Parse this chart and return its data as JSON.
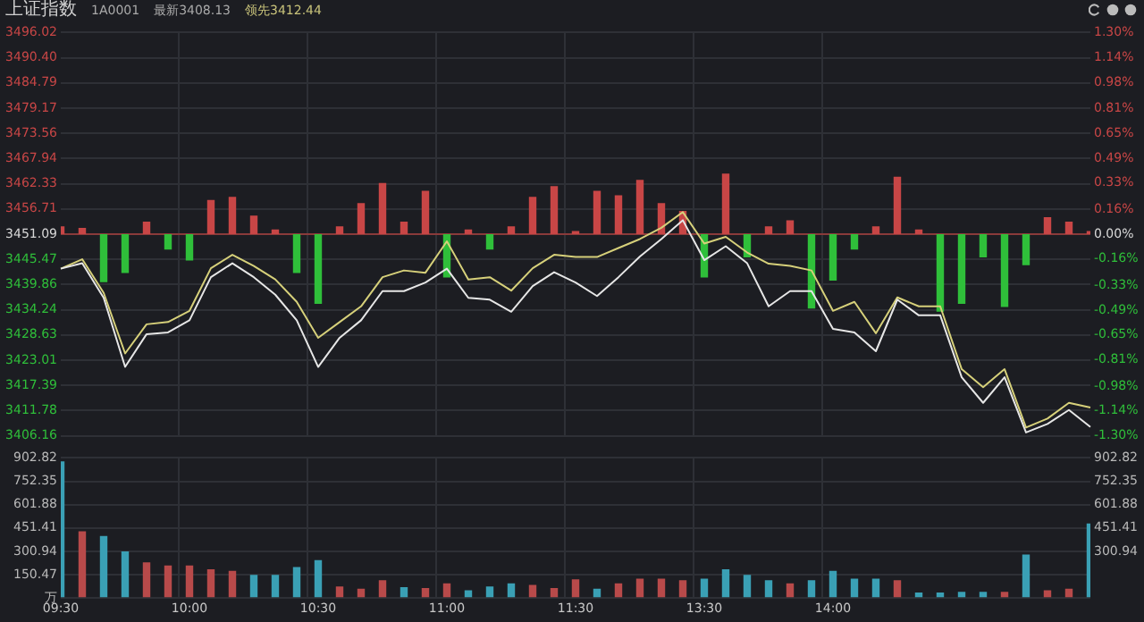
{
  "chart_data": [
    {
      "type": "line",
      "title": "上证指数",
      "annotations": [
        "1A0001",
        "最新3408.13",
        "领先3412.44"
      ],
      "categories": [
        null,
        null,
        null,
        null,
        null,
        null,
        null,
        null,
        null,
        null,
        null,
        null,
        null,
        null,
        null,
        null,
        null,
        null,
        null,
        null,
        null,
        null,
        null,
        null,
        null,
        null,
        null,
        null,
        null,
        null,
        null,
        null,
        null,
        null,
        null,
        null,
        null,
        null,
        null,
        null,
        null,
        null,
        null,
        null,
        null,
        null,
        null,
        null,
        null
      ],
      "series": [
        {
          "type": "line",
          "color": "#e6e6e6",
          "values": [
            3443.4,
            3444.6,
            3436.9,
            3421.5,
            3428.8,
            3429.2,
            3431.9,
            3441.5,
            3444.6,
            3441.5,
            3437.6,
            3431.9,
            3421.5,
            3428.0,
            3431.9,
            3438.4,
            3438.4,
            3440.3,
            3443.4,
            3436.9,
            3436.5,
            3433.8,
            3439.5,
            3442.6,
            3440.3,
            3437.3,
            3441.5,
            3446.1,
            3450.0,
            3454.2,
            3445.3,
            3448.4,
            3444.6,
            3435.0,
            3438.4,
            3438.4,
            3430.0,
            3429.2,
            3425.0,
            3436.5,
            3433.0,
            3433.0,
            3419.2,
            3413.5,
            3419.2,
            3406.9,
            3408.8,
            3411.9,
            3408.13
          ]
        },
        {
          "type": "line",
          "color": "#d6d07a",
          "values": [
            3443.4,
            3445.5,
            3438,
            3424.5,
            3431,
            3431.5,
            3434,
            3443.5,
            3446.5,
            3444,
            3441,
            3436,
            3428,
            3431.5,
            3435,
            3441.5,
            3443,
            3442.5,
            3449.5,
            3441,
            3441.5,
            3438.5,
            3443.5,
            3446.5,
            3446,
            3446,
            3448,
            3450,
            3452.5,
            3456,
            3449,
            3450.5,
            3447,
            3444.5,
            3444,
            3443,
            3434,
            3436,
            3429,
            3437,
            3435,
            3435,
            3421,
            3417,
            3421,
            3408,
            3410,
            3413.5,
            3412.44
          ]
        },
        {
          "type": "bar",
          "axis": "y2",
          "values": [
            0.05,
            0.04,
            -0.31,
            -0.25,
            0.08,
            -0.1,
            -0.17,
            0.22,
            0.24,
            0.12,
            0.03,
            -0.25,
            -0.45,
            0.05,
            0.2,
            0.33,
            0.08,
            0.28,
            -0.28,
            0.03,
            -0.1,
            0.05,
            0.24,
            0.31,
            0.02,
            0.28,
            0.25,
            0.35,
            0.2,
            0.15,
            -0.28,
            0.39,
            -0.15,
            0.05,
            0.09,
            -0.48,
            -0.3,
            -0.1,
            0.05,
            0.37,
            0.03,
            -0.5,
            -0.45,
            -0.15,
            -0.47,
            -0.2,
            0.11,
            0.08,
            0.02
          ],
          "colors": [
            "#c84646",
            "#c84646",
            "#2fbf3a",
            "#2fbf3a",
            "#c84646",
            "#2fbf3a",
            "#2fbf3a",
            "#c84646",
            "#c84646",
            "#c84646",
            "#c84646",
            "#2fbf3a",
            "#2fbf3a",
            "#c84646",
            "#c84646",
            "#c84646",
            "#c84646",
            "#c84646",
            "#2fbf3a",
            "#c84646",
            "#2fbf3a",
            "#c84646",
            "#c84646",
            "#c84646",
            "#c84646",
            "#c84646",
            "#c84646",
            "#c84646",
            "#c84646",
            "#c84646",
            "#2fbf3a",
            "#c84646",
            "#2fbf3a",
            "#c84646",
            "#c84646",
            "#2fbf3a",
            "#2fbf3a",
            "#2fbf3a",
            "#c84646",
            "#c84646",
            "#c84646",
            "#2fbf3a",
            "#2fbf3a",
            "#2fbf3a",
            "#2fbf3a",
            "#2fbf3a",
            "#c84646",
            "#c84646",
            "#c84646"
          ]
        }
      ],
      "ylim": [
        3406.16,
        3496.02
      ],
      "yticks": [
        3406.16,
        3411.78,
        3417.39,
        3423.01,
        3428.63,
        3434.24,
        3439.86,
        3445.47,
        3451.09,
        3456.71,
        3462.33,
        3467.94,
        3473.56,
        3479.17,
        3484.79,
        {
          "value": 3490.4,
          "label": "3490.40"
        },
        3496.02
      ],
      "y2lim": [
        -1.3,
        1.3
      ],
      "y2ticks": [
        {
          "value": -1.3,
          "label": "-1.30%"
        },
        {
          "value": -1.14,
          "label": "-1.14%"
        },
        {
          "value": -0.98,
          "label": "-0.98%"
        },
        {
          "value": -0.81,
          "label": "-0.81%"
        },
        {
          "value": -0.65,
          "label": "-0.65%"
        },
        {
          "value": -0.49,
          "label": "-0.49%"
        },
        {
          "value": -0.33,
          "label": "-0.33%"
        },
        {
          "value": -0.16,
          "label": "-0.16%"
        },
        {
          "value": 0,
          "label": "0.00%"
        },
        {
          "value": 0.16,
          "label": "0.16%"
        },
        {
          "value": 0.33,
          "label": "0.33%"
        },
        {
          "value": 0.49,
          "label": "0.49%"
        },
        {
          "value": 0.65,
          "label": "0.65%"
        },
        {
          "value": 0.81,
          "label": "0.81%"
        },
        {
          "value": 0.98,
          "label": "0.98%"
        },
        {
          "value": 1.14,
          "label": "1.14%"
        },
        {
          "value": 1.3,
          "label": "1.30%"
        }
      ],
      "ref_lines": [
        {
          "axis": "y",
          "value": 3451.09,
          "color": "#8a3a3a"
        }
      ],
      "grid": true,
      "legend": false,
      "tick_labels": "y",
      "marker": "none"
    },
    {
      "type": "bar",
      "categories": [
        "09:30",
        null,
        null,
        null,
        null,
        null,
        "10:00",
        null,
        null,
        null,
        null,
        null,
        "10:30",
        null,
        null,
        null,
        null,
        null,
        "11:00",
        null,
        null,
        null,
        null,
        null,
        "11:30",
        null,
        null,
        null,
        null,
        null,
        "13:30",
        null,
        null,
        null,
        null,
        null,
        "14:00",
        null,
        null,
        null,
        null,
        null,
        null,
        null,
        null,
        null,
        null,
        null,
        null
      ],
      "values": [
        880,
        430,
        400,
        300,
        230,
        210,
        210,
        185,
        175,
        150,
        150,
        200,
        245,
        75,
        60,
        115,
        70,
        65,
        95,
        50,
        75,
        95,
        85,
        65,
        120,
        60,
        95,
        125,
        125,
        115,
        125,
        185,
        150,
        115,
        95,
        115,
        175,
        125,
        125,
        115,
        35,
        35,
        40,
        40,
        40,
        280,
        50,
        60,
        480
      ],
      "colors": [
        "#3aa0b5",
        "#b84a4a",
        "#3aa0b5",
        "#3aa0b5",
        "#b84a4a",
        "#b84a4a",
        "#b84a4a",
        "#b84a4a",
        "#b84a4a",
        "#3aa0b5",
        "#3aa0b5",
        "#3aa0b5",
        "#3aa0b5",
        "#b84a4a",
        "#b84a4a",
        "#b84a4a",
        "#3aa0b5",
        "#b84a4a",
        "#b84a4a",
        "#3aa0b5",
        "#3aa0b5",
        "#3aa0b5",
        "#b84a4a",
        "#b84a4a",
        "#b84a4a",
        "#3aa0b5",
        "#b84a4a",
        "#b84a4a",
        "#b84a4a",
        "#b84a4a",
        "#3aa0b5",
        "#3aa0b5",
        "#3aa0b5",
        "#3aa0b5",
        "#b84a4a",
        "#3aa0b5",
        "#3aa0b5",
        "#3aa0b5",
        "#3aa0b5",
        "#b84a4a",
        "#3aa0b5",
        "#3aa0b5",
        "#3aa0b5",
        "#3aa0b5",
        "#b84a4a",
        "#3aa0b5",
        "#b84a4a",
        "#b84a4a",
        "#3aa0b5"
      ],
      "ylim": [
        0,
        902.82
      ],
      "yticks": [
        {
          "value": 0,
          "label": "万"
        },
        150.47,
        300.94,
        451.41,
        601.88,
        752.35,
        902.82
      ],
      "y2lim": [
        0,
        902.82
      ],
      "y2ticks": [
        300.94,
        451.41,
        601.88,
        752.35,
        902.82
      ],
      "grid": true,
      "legend": false
    }
  ]
}
